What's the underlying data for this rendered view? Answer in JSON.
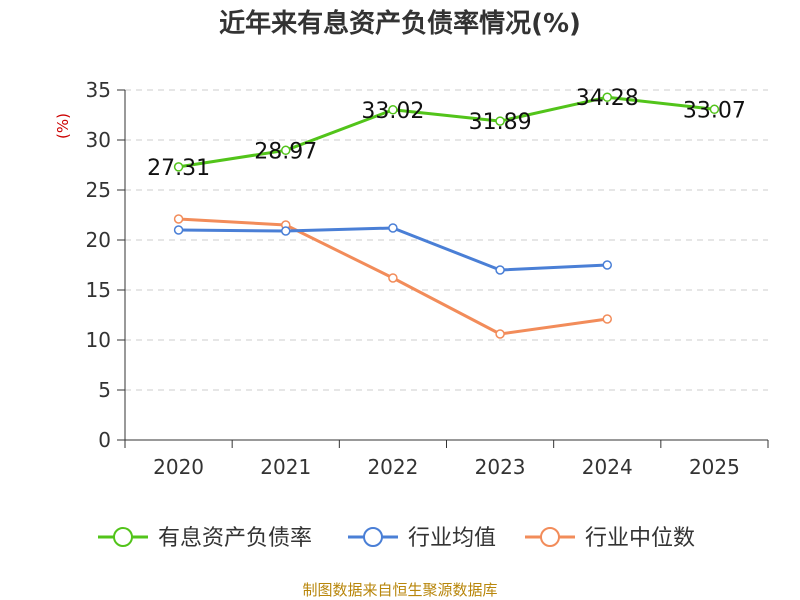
{
  "chart_data": {
    "type": "line",
    "title": "近年来有息资产负债率情况(%)",
    "ylabel": "(%)",
    "xlabel": "",
    "categories": [
      "2020",
      "2021",
      "2022",
      "2023",
      "2024",
      "2025"
    ],
    "ylim": [
      0,
      35
    ],
    "yticks": [
      0,
      5,
      10,
      15,
      20,
      25,
      30,
      35
    ],
    "grid": true,
    "legend_position": "bottom",
    "series": [
      {
        "name": "有息资产负债率",
        "color": "#52c41a",
        "values": [
          27.31,
          28.97,
          33.02,
          31.89,
          34.28,
          33.07
        ],
        "labels": [
          "27.31",
          "28.97",
          "33.02",
          "31.89",
          "34.28",
          "33.07"
        ]
      },
      {
        "name": "行业均值",
        "color": "#4a7fd6",
        "values": [
          21.0,
          20.9,
          21.2,
          17.0,
          17.5,
          null
        ]
      },
      {
        "name": "行业中位数",
        "color": "#f28c5a",
        "values": [
          22.1,
          21.5,
          16.2,
          10.6,
          12.1,
          null
        ]
      }
    ]
  },
  "footer": {
    "source": "制图数据来自恒生聚源数据库"
  }
}
